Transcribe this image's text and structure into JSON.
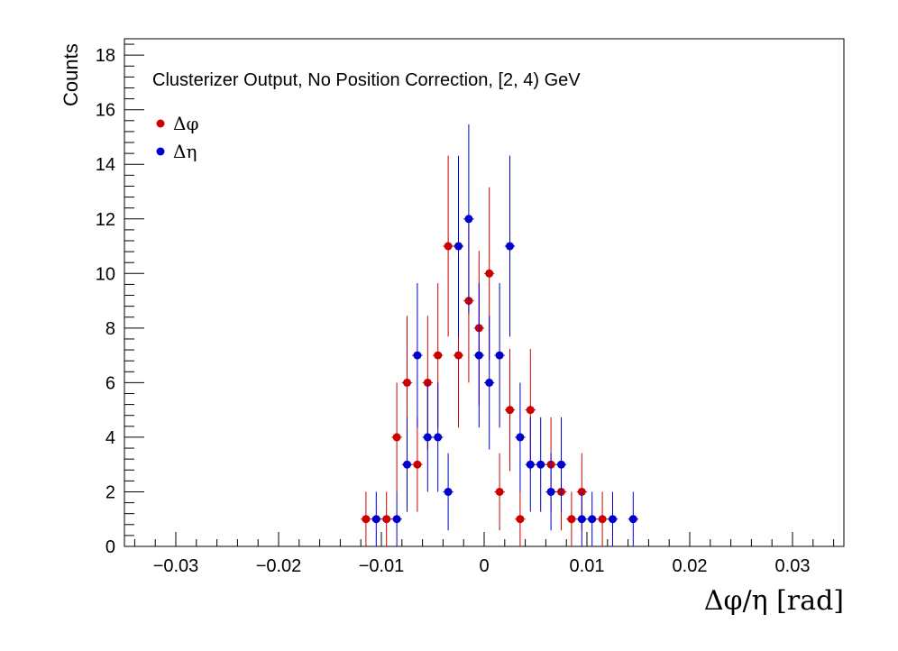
{
  "chart_data": {
    "type": "scatter",
    "title": "Clusterizer Output, No Position Correction, [2, 4) GeV",
    "xlabel": "Δφ/η  [rad]",
    "ylabel": "Counts",
    "xlim": [
      -0.035,
      0.035
    ],
    "ylim": [
      0,
      18.6
    ],
    "x_ticks": [
      "−0.03",
      "−0.02",
      "−0.01",
      "0",
      "0.01",
      "0.02",
      "0.03"
    ],
    "y_ticks": [
      "0",
      "2",
      "4",
      "6",
      "8",
      "10",
      "12",
      "14",
      "16",
      "18"
    ],
    "legend_position": "top-left",
    "grid": false,
    "series": [
      {
        "name": "Δφ",
        "color": "#cc0000",
        "x": [
          -0.0115,
          -0.0095,
          -0.0085,
          -0.0075,
          -0.0065,
          -0.0055,
          -0.0045,
          -0.0035,
          -0.0025,
          -0.0015,
          -0.0005,
          0.0005,
          0.0015,
          0.0025,
          0.0035,
          0.0045,
          0.0065,
          0.0075,
          0.0085,
          0.0095,
          0.0115
        ],
        "y": [
          1,
          1,
          4,
          6,
          3,
          6,
          7,
          11,
          7,
          9,
          8,
          10,
          2,
          5,
          1,
          5,
          3,
          2,
          1,
          2,
          1
        ]
      },
      {
        "name": "Δη",
        "color": "#0000cc",
        "x": [
          -0.0105,
          -0.0085,
          -0.0075,
          -0.0065,
          -0.0055,
          -0.0045,
          -0.0035,
          -0.0025,
          -0.0015,
          -0.0005,
          0.0005,
          0.0015,
          0.0025,
          0.0035,
          0.0045,
          0.0055,
          0.0065,
          0.0075,
          0.0095,
          0.0105,
          0.0125,
          0.0145
        ],
        "y": [
          1,
          1,
          3,
          7,
          4,
          4,
          2,
          11,
          12,
          7,
          6,
          7,
          11,
          4,
          3,
          3,
          2,
          3,
          1,
          1,
          1,
          1
        ]
      }
    ]
  }
}
